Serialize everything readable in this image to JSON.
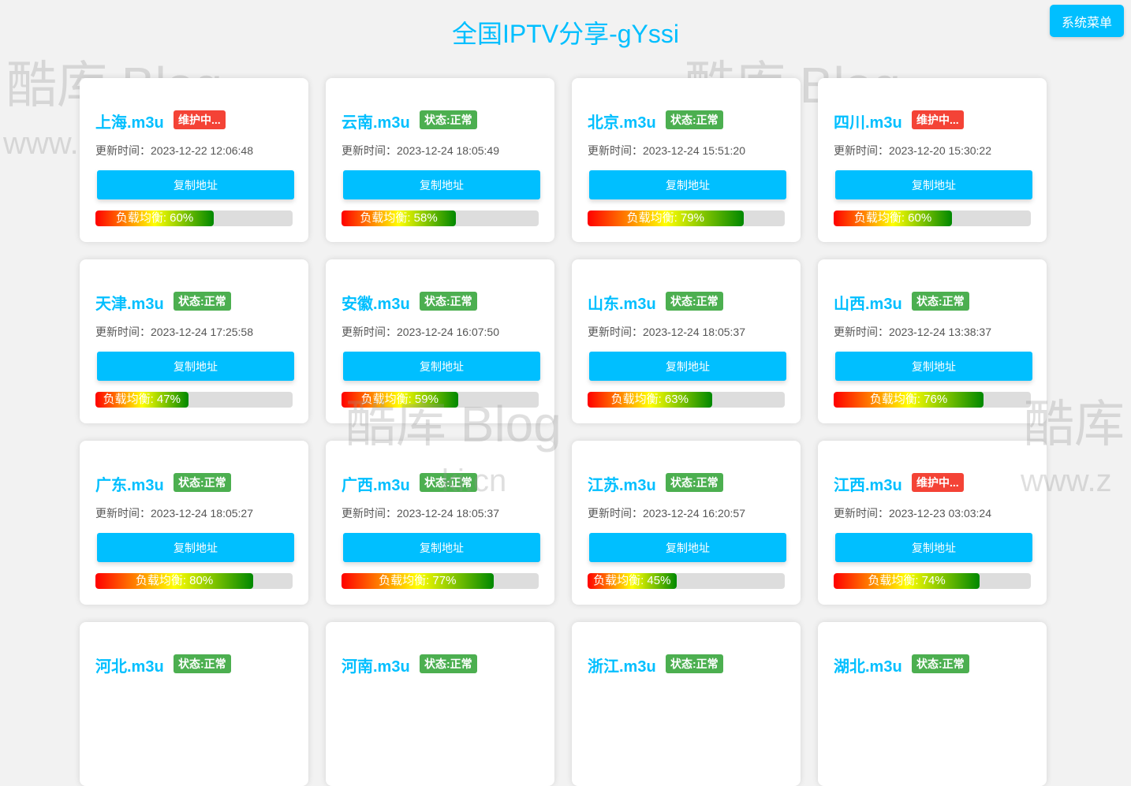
{
  "header": {
    "title": "全国IPTV分享-gYssi",
    "menu_label": "系统菜单"
  },
  "watermark": {
    "logo": "酷库 Blog",
    "url": "www.zxki.cn"
  },
  "labels": {
    "copy": "复制地址",
    "time_prefix": "更新时间：",
    "load_prefix": "负载均衡: "
  },
  "colors": {
    "accent": "#00bfff",
    "status_ok": "#4caf50",
    "status_maint": "#f44336"
  },
  "cards": [
    {
      "name": "上海.m3u",
      "status": "维护中...",
      "ok": false,
      "time": "2023-12-22 12:06:48",
      "load": 60
    },
    {
      "name": "云南.m3u",
      "status": "状态:正常",
      "ok": true,
      "time": "2023-12-24 18:05:49",
      "load": 58
    },
    {
      "name": "北京.m3u",
      "status": "状态:正常",
      "ok": true,
      "time": "2023-12-24 15:51:20",
      "load": 79
    },
    {
      "name": "四川.m3u",
      "status": "维护中...",
      "ok": false,
      "time": "2023-12-20 15:30:22",
      "load": 60
    },
    {
      "name": "天津.m3u",
      "status": "状态:正常",
      "ok": true,
      "time": "2023-12-24 17:25:58",
      "load": 47
    },
    {
      "name": "安徽.m3u",
      "status": "状态:正常",
      "ok": true,
      "time": "2023-12-24 16:07:50",
      "load": 59
    },
    {
      "name": "山东.m3u",
      "status": "状态:正常",
      "ok": true,
      "time": "2023-12-24 18:05:37",
      "load": 63
    },
    {
      "name": "山西.m3u",
      "status": "状态:正常",
      "ok": true,
      "time": "2023-12-24 13:38:37",
      "load": 76
    },
    {
      "name": "广东.m3u",
      "status": "状态:正常",
      "ok": true,
      "time": "2023-12-24 18:05:27",
      "load": 80
    },
    {
      "name": "广西.m3u",
      "status": "状态:正常",
      "ok": true,
      "time": "2023-12-24 18:05:37",
      "load": 77
    },
    {
      "name": "江苏.m3u",
      "status": "状态:正常",
      "ok": true,
      "time": "2023-12-24 16:20:57",
      "load": 45
    },
    {
      "name": "江西.m3u",
      "status": "维护中...",
      "ok": false,
      "time": "2023-12-23 03:03:24",
      "load": 74
    },
    {
      "name": "河北.m3u",
      "status": "状态:正常",
      "ok": true
    },
    {
      "name": "河南.m3u",
      "status": "状态:正常",
      "ok": true
    },
    {
      "name": "浙江.m3u",
      "status": "状态:正常",
      "ok": true
    },
    {
      "name": "湖北.m3u",
      "status": "状态:正常",
      "ok": true
    }
  ]
}
